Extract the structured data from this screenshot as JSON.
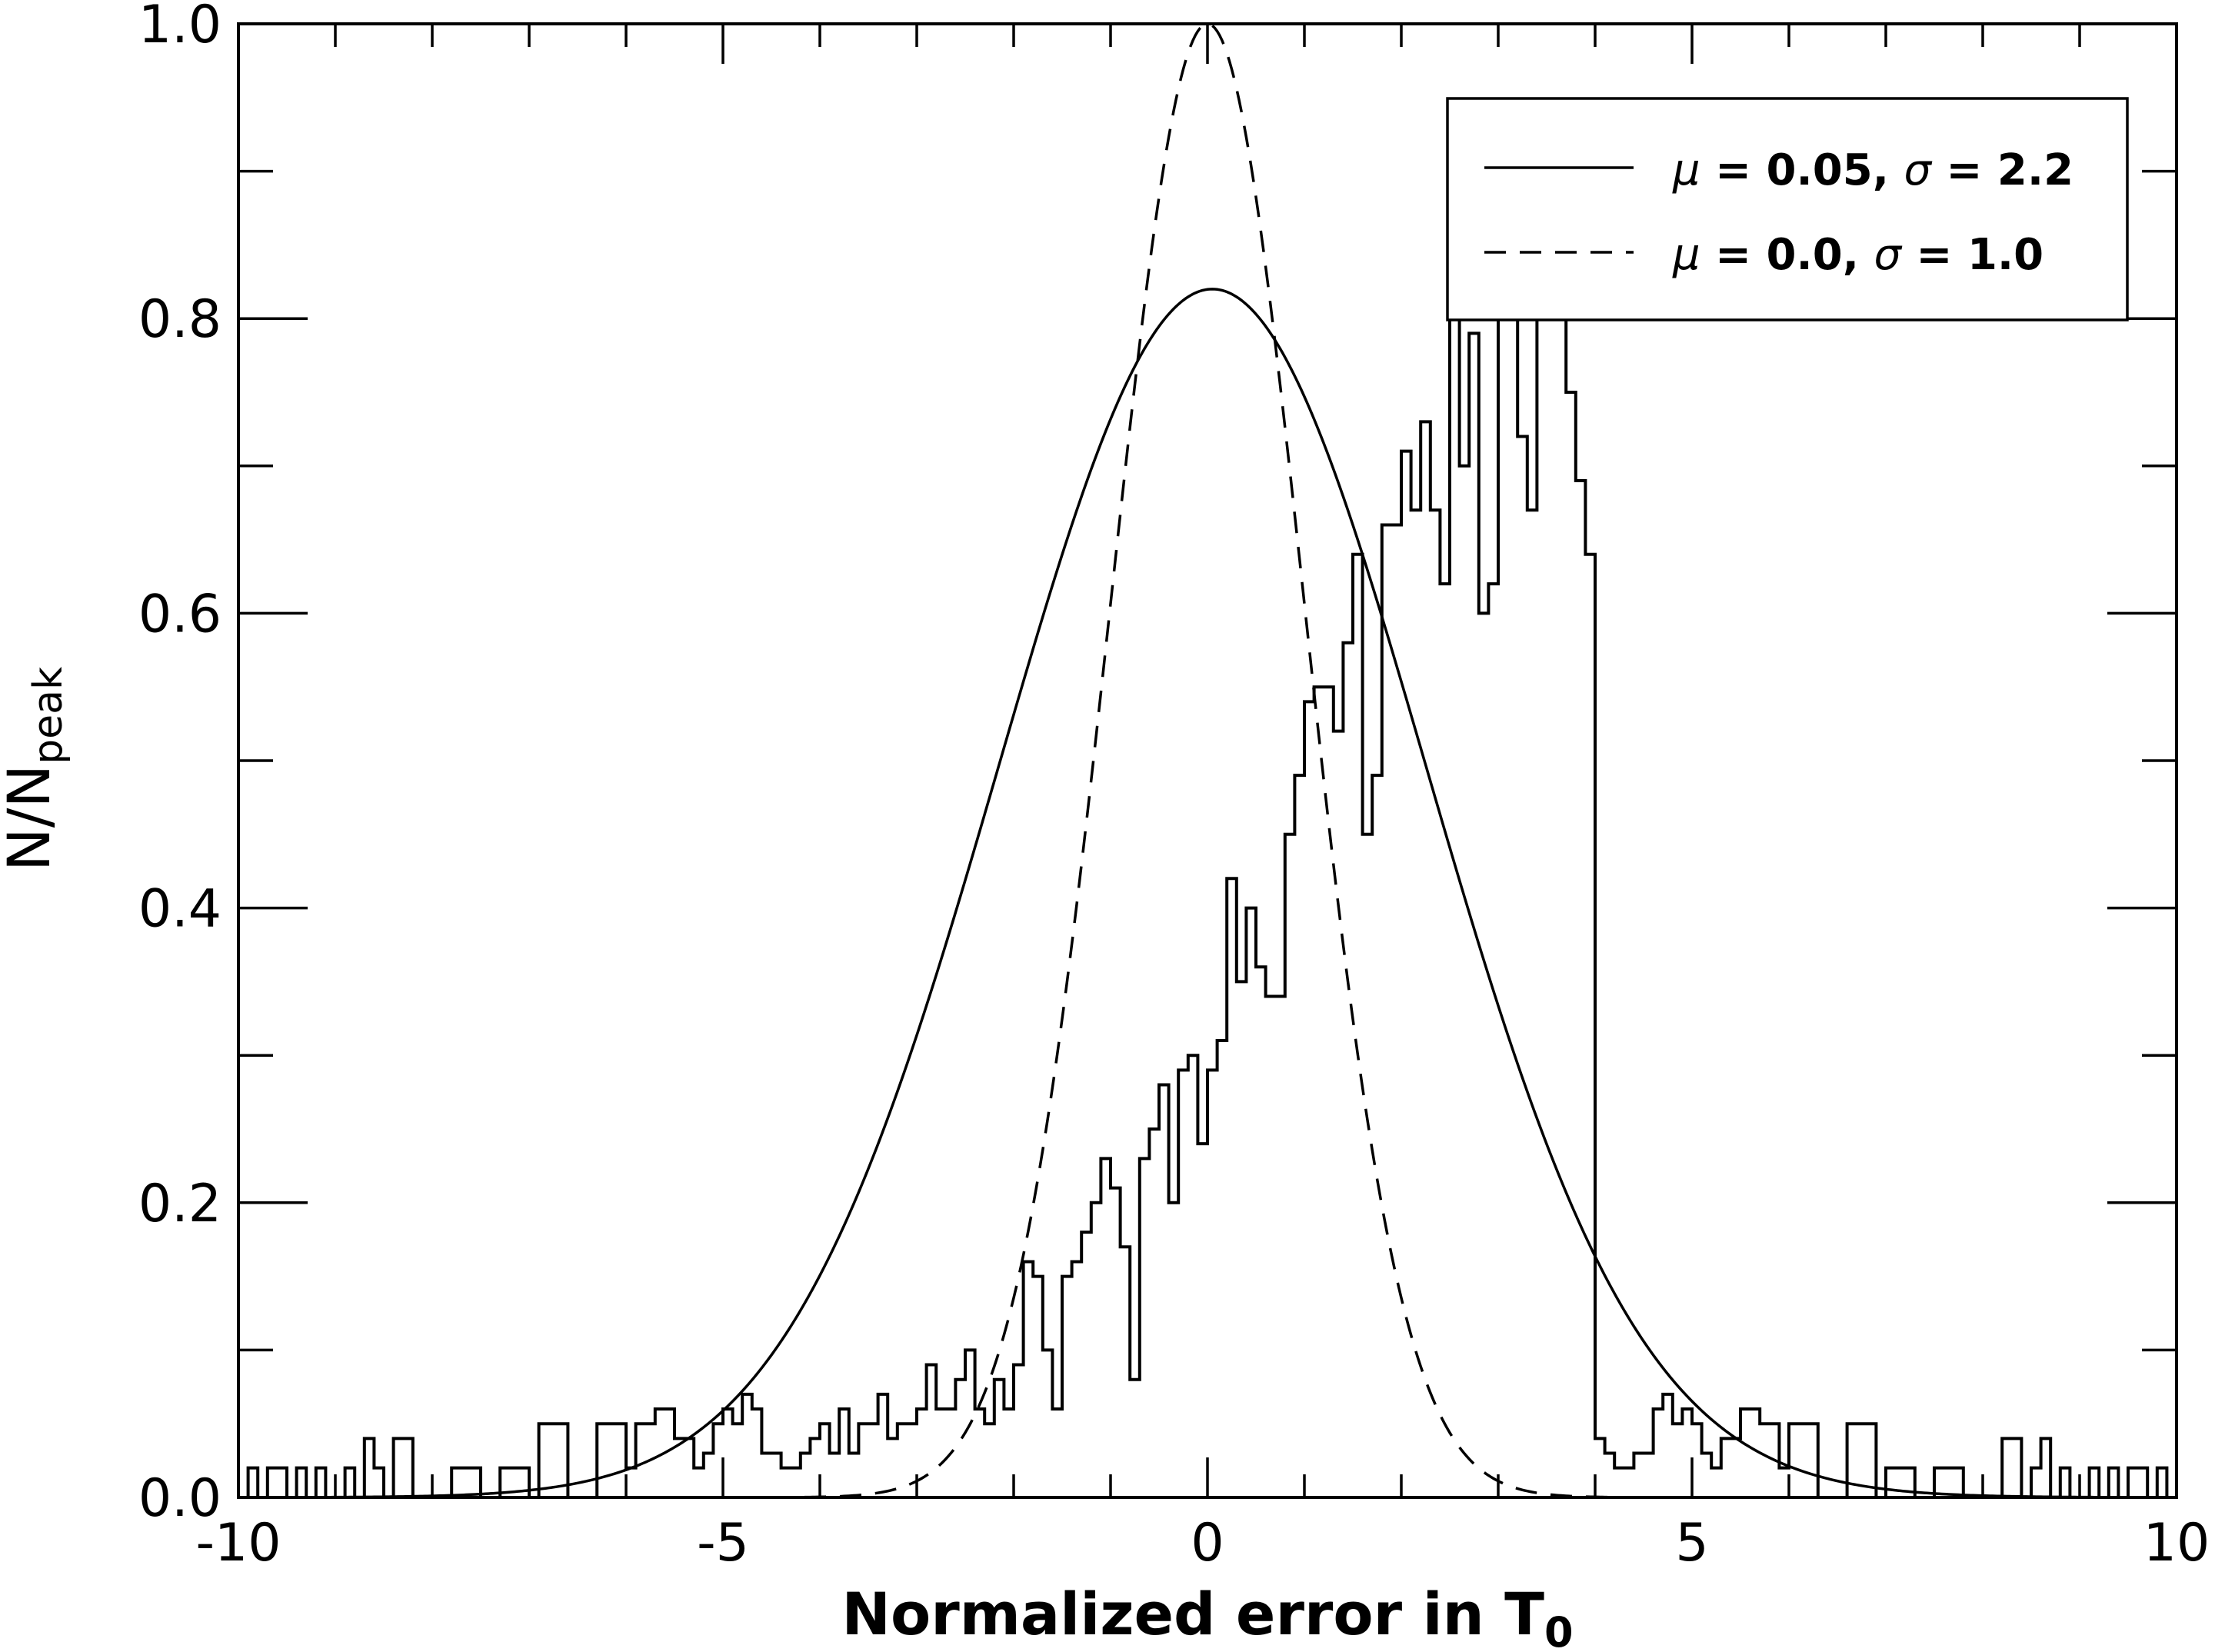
{
  "chart_data": {
    "type": "histogram",
    "xlabel": "Normalized error in T",
    "xlabel_sub": "0",
    "ylabel": "N/N",
    "ylabel_sub": "peak",
    "xlim": [
      -10,
      10
    ],
    "ylim": [
      0,
      1
    ],
    "x_ticks": [
      -10,
      -5,
      0,
      5,
      10
    ],
    "x_tick_labels": [
      "-10",
      "-5",
      "0",
      "5",
      "10"
    ],
    "y_ticks": [
      0,
      0.2,
      0.4,
      0.6,
      0.8,
      1.0
    ],
    "y_tick_labels": [
      "0.0",
      "0.2",
      "0.4",
      "0.6",
      "0.8",
      "1.0"
    ],
    "grid": false,
    "legend_position": "top-right",
    "legend": [
      {
        "style": "solid",
        "sym1": "μ",
        "text1": " = 0.05, ",
        "sym2": "σ",
        "text2": " = 2.2"
      },
      {
        "style": "dashed",
        "sym1": "μ",
        "text1": " = 0.0, ",
        "sym2": "σ",
        "text2": " = 1.0"
      }
    ],
    "curves": [
      {
        "name": "μ = 0.05, σ = 2.2",
        "style": "solid",
        "mu": 0.05,
        "sigma": 2.2,
        "amplitude": 0.82
      },
      {
        "name": "μ = 0.0, σ = 1.0",
        "style": "dashed",
        "mu": 0.0,
        "sigma": 1.0,
        "amplitude": 1.0
      }
    ],
    "histogram": {
      "bin_start": -10.0,
      "bin_width": 0.1,
      "values": [
        0.0,
        0.02,
        0.0,
        0.02,
        0.02,
        0.0,
        0.02,
        0.0,
        0.02,
        0.0,
        0.0,
        0.02,
        0.0,
        0.04,
        0.02,
        0.0,
        0.04,
        0.04,
        0.0,
        0.0,
        0.0,
        0.0,
        0.02,
        0.02,
        0.02,
        0.0,
        0.0,
        0.02,
        0.02,
        0.02,
        0.0,
        0.05,
        0.05,
        0.05,
        0.0,
        0.0,
        0.0,
        0.05,
        0.05,
        0.05,
        0.02,
        0.05,
        0.05,
        0.06,
        0.06,
        0.04,
        0.04,
        0.02,
        0.03,
        0.05,
        0.06,
        0.05,
        0.07,
        0.06,
        0.03,
        0.03,
        0.02,
        0.02,
        0.03,
        0.04,
        0.05,
        0.03,
        0.06,
        0.03,
        0.05,
        0.05,
        0.07,
        0.04,
        0.05,
        0.05,
        0.06,
        0.09,
        0.06,
        0.06,
        0.08,
        0.1,
        0.06,
        0.05,
        0.08,
        0.06,
        0.09,
        0.16,
        0.15,
        0.1,
        0.06,
        0.15,
        0.16,
        0.18,
        0.2,
        0.23,
        0.21,
        0.17,
        0.08,
        0.23,
        0.25,
        0.28,
        0.2,
        0.29,
        0.3,
        0.24,
        0.29,
        0.31,
        0.42,
        0.35,
        0.4,
        0.36,
        0.34,
        0.34,
        0.45,
        0.49,
        0.54,
        0.55,
        0.55,
        0.52,
        0.58,
        0.64,
        0.45,
        0.49,
        0.66,
        0.66,
        0.71,
        0.67,
        0.73,
        0.67,
        0.62,
        0.89,
        0.7,
        0.79,
        0.6,
        0.62,
        0.82,
        0.82,
        0.72,
        0.67,
        0.88,
        0.87,
        0.82,
        0.75,
        0.69,
        0.64
      ]
    }
  }
}
